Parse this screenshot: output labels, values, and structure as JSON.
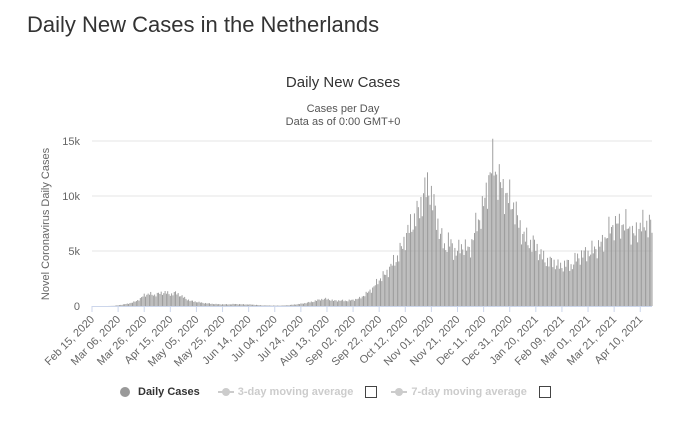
{
  "page": {
    "title": "Daily New Cases in the Netherlands"
  },
  "chart_data": {
    "type": "bar",
    "title": "Daily New Cases",
    "subtitle_lines": [
      "Cases per Day",
      "Data as of 0:00 GMT+0"
    ],
    "ylabel": "Novel Coronavirus Daily Cases",
    "xlabel": "",
    "ylim": [
      0,
      15000
    ],
    "yticks": [
      0,
      5000,
      10000,
      15000
    ],
    "ytick_labels": [
      "0",
      "5k",
      "10k",
      "15k"
    ],
    "x_start": "2020-02-15",
    "x_end": "2021-04-19",
    "xtick_labels": [
      "Feb 15, 2020",
      "Mar 06, 2020",
      "Mar 26, 2020",
      "Apr 15, 2020",
      "May 05, 2020",
      "May 25, 2020",
      "Jun 14, 2020",
      "Jul 04, 2020",
      "Jul 24, 2020",
      "Aug 13, 2020",
      "Sep 02, 2020",
      "Sep 22, 2020",
      "Oct 12, 2020",
      "Nov 01, 2020",
      "Nov 21, 2020",
      "Dec 11, 2020",
      "Dec 31, 2020",
      "Jan 20, 2021",
      "Feb 09, 2021",
      "Mar 01, 2021",
      "Mar 21, 2021",
      "Apr 10, 2021"
    ],
    "grid": true,
    "legend_position": "bottom",
    "series_color": "#999999",
    "series": [
      {
        "name": "Daily Cases",
        "points": [
          [
            "2020-02-15",
            0
          ],
          [
            "2020-02-27",
            0
          ],
          [
            "2020-03-03",
            20
          ],
          [
            "2020-03-08",
            100
          ],
          [
            "2020-03-13",
            200
          ],
          [
            "2020-03-18",
            350
          ],
          [
            "2020-03-23",
            650
          ],
          [
            "2020-03-26",
            1000
          ],
          [
            "2020-03-30",
            1100
          ],
          [
            "2020-04-03",
            1000
          ],
          [
            "2020-04-07",
            1150
          ],
          [
            "2020-04-11",
            1250
          ],
          [
            "2020-04-15",
            1050
          ],
          [
            "2020-04-19",
            1200
          ],
          [
            "2020-04-23",
            950
          ],
          [
            "2020-04-27",
            650
          ],
          [
            "2020-05-01",
            450
          ],
          [
            "2020-05-05",
            380
          ],
          [
            "2020-05-10",
            280
          ],
          [
            "2020-05-15",
            220
          ],
          [
            "2020-05-20",
            170
          ],
          [
            "2020-05-25",
            150
          ],
          [
            "2020-05-30",
            150
          ],
          [
            "2020-06-04",
            180
          ],
          [
            "2020-06-09",
            150
          ],
          [
            "2020-06-14",
            140
          ],
          [
            "2020-06-19",
            110
          ],
          [
            "2020-06-24",
            60
          ],
          [
            "2020-06-29",
            50
          ],
          [
            "2020-07-04",
            40
          ],
          [
            "2020-07-09",
            40
          ],
          [
            "2020-07-14",
            70
          ],
          [
            "2020-07-19",
            130
          ],
          [
            "2020-07-24",
            200
          ],
          [
            "2020-07-29",
            300
          ],
          [
            "2020-08-03",
            420
          ],
          [
            "2020-08-08",
            600
          ],
          [
            "2020-08-13",
            650
          ],
          [
            "2020-08-18",
            480
          ],
          [
            "2020-08-23",
            500
          ],
          [
            "2020-08-28",
            470
          ],
          [
            "2020-09-02",
            550
          ],
          [
            "2020-09-07",
            700
          ],
          [
            "2020-09-12",
            1100
          ],
          [
            "2020-09-17",
            1600
          ],
          [
            "2020-09-22",
            2400
          ],
          [
            "2020-09-27",
            2900
          ],
          [
            "2020-10-02",
            3800
          ],
          [
            "2020-10-07",
            4600
          ],
          [
            "2020-10-12",
            6200
          ],
          [
            "2020-10-17",
            7500
          ],
          [
            "2020-10-22",
            8500
          ],
          [
            "2020-10-26",
            10100
          ],
          [
            "2020-10-30",
            11000
          ],
          [
            "2020-11-03",
            9000
          ],
          [
            "2020-11-07",
            7000
          ],
          [
            "2020-11-11",
            5200
          ],
          [
            "2020-11-14",
            6000
          ],
          [
            "2020-11-18",
            5000
          ],
          [
            "2020-11-22",
            5100
          ],
          [
            "2020-11-26",
            5500
          ],
          [
            "2020-11-30",
            4900
          ],
          [
            "2020-12-04",
            6800
          ],
          [
            "2020-12-08",
            8000
          ],
          [
            "2020-12-12",
            9500
          ],
          [
            "2020-12-16",
            12300
          ],
          [
            "2020-12-19",
            12900
          ],
          [
            "2020-12-22",
            11500
          ],
          [
            "2020-12-26",
            10500
          ],
          [
            "2020-12-30",
            9800
          ],
          [
            "2021-01-03",
            9200
          ],
          [
            "2021-01-07",
            7400
          ],
          [
            "2021-01-11",
            6300
          ],
          [
            "2021-01-15",
            5800
          ],
          [
            "2021-01-19",
            5600
          ],
          [
            "2021-01-23",
            4800
          ],
          [
            "2021-01-27",
            4200
          ],
          [
            "2021-01-31",
            4000
          ],
          [
            "2021-02-04",
            3900
          ],
          [
            "2021-02-08",
            3500
          ],
          [
            "2021-02-12",
            3900
          ],
          [
            "2021-02-16",
            3600
          ],
          [
            "2021-02-20",
            4300
          ],
          [
            "2021-02-24",
            4600
          ],
          [
            "2021-02-28",
            4800
          ],
          [
            "2021-03-04",
            5000
          ],
          [
            "2021-03-08",
            5300
          ],
          [
            "2021-03-12",
            5700
          ],
          [
            "2021-03-16",
            6600
          ],
          [
            "2021-03-20",
            7300
          ],
          [
            "2021-03-24",
            7400
          ],
          [
            "2021-03-28",
            7400
          ],
          [
            "2021-04-01",
            7300
          ],
          [
            "2021-04-05",
            6300
          ],
          [
            "2021-04-09",
            7200
          ],
          [
            "2021-04-13",
            7400
          ],
          [
            "2021-04-17",
            7500
          ],
          [
            "2021-04-19",
            7000
          ]
        ]
      }
    ]
  },
  "legend": {
    "daily_cases": "Daily Cases",
    "ma3": "3-day moving average",
    "ma7": "7-day moving average"
  }
}
